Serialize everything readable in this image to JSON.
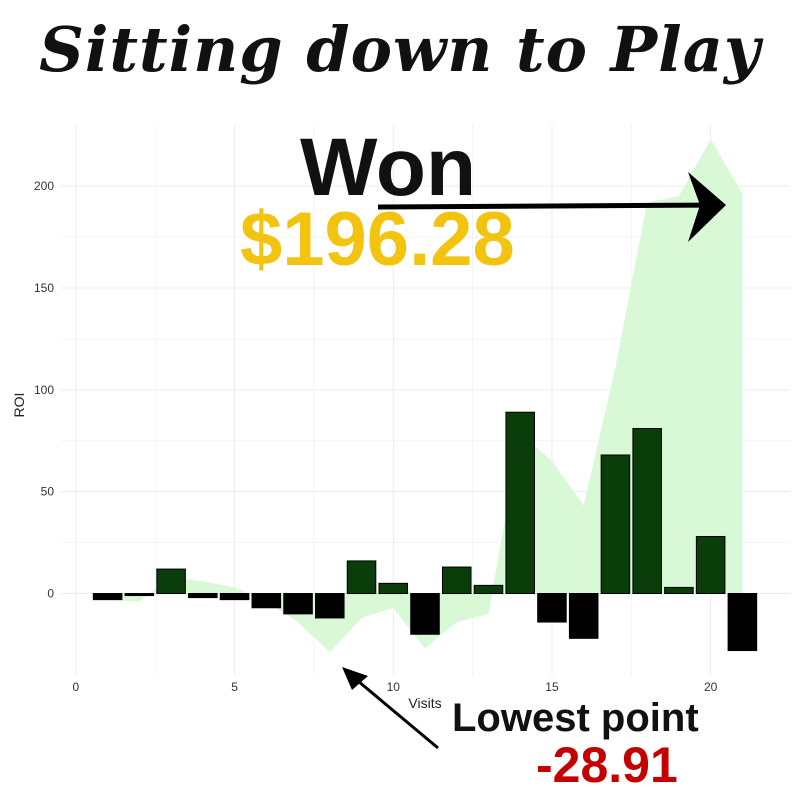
{
  "page": {
    "title": "Sitting down to Play"
  },
  "annotations": {
    "won_label": "Won",
    "won_amount": "$196.28",
    "lowest_label": "Lowest point",
    "lowest_value": "-28.91"
  },
  "colors": {
    "bar_positive": "#0b3d0b",
    "bar_negative": "#000000",
    "area_fill": "#d9f8d6",
    "gold": "#f2c40f",
    "red": "#c40000",
    "grid": "#ececec"
  },
  "chart_data": {
    "type": "bar",
    "title": "",
    "xlabel": "Visits",
    "ylabel": "ROI",
    "xlim": [
      -0.5,
      22.5
    ],
    "ylim": [
      -40,
      230
    ],
    "x_ticks": [
      0,
      5,
      10,
      15,
      20
    ],
    "y_ticks": [
      0,
      50,
      100,
      150,
      200
    ],
    "grid": true,
    "series": [
      {
        "type": "bar",
        "x": [
          1,
          2,
          3,
          4,
          5,
          6,
          7,
          8,
          9,
          10,
          11,
          12,
          13,
          14,
          15,
          16,
          17,
          18,
          19,
          20,
          21
        ],
        "values": [
          -3,
          -1,
          12,
          -2,
          -3,
          -7,
          -10,
          -12,
          16,
          5,
          -20,
          13,
          4,
          89,
          -14,
          -22,
          68,
          81,
          3,
          28,
          -28
        ]
      },
      {
        "type": "area",
        "x": [
          1,
          2,
          3,
          4,
          5,
          6,
          7,
          8,
          9,
          10,
          11,
          12,
          13,
          14,
          15,
          16,
          17,
          18,
          19,
          20,
          21
        ],
        "values": [
          -3,
          -4,
          8,
          6,
          3,
          -4,
          -14,
          -28.91,
          -12,
          -7,
          -27,
          -14,
          -10,
          79,
          65,
          43,
          111,
          192,
          195,
          223,
          196.28
        ]
      }
    ]
  }
}
